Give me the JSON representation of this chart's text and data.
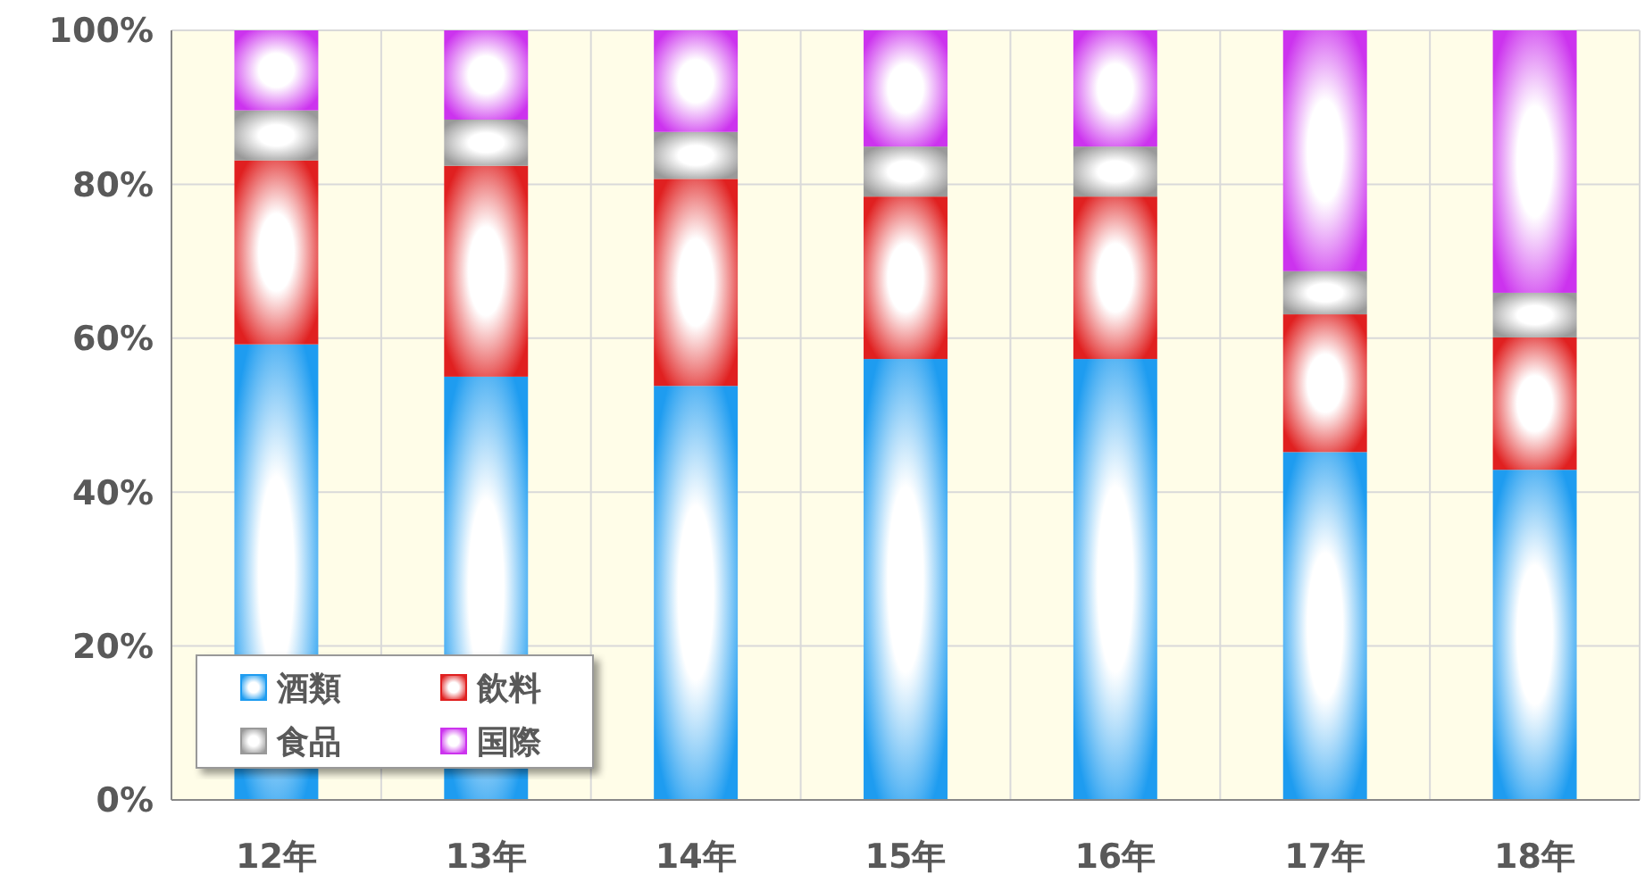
{
  "chart_data": {
    "type": "bar",
    "stacked": true,
    "categories": [
      "12年",
      "13年",
      "14年",
      "15年",
      "16年",
      "17年",
      "18年"
    ],
    "series": [
      {
        "name": "酒類",
        "color": "#1e9cf0",
        "values": [
          59.2,
          55.0,
          53.8,
          57.3,
          57.3,
          45.2,
          42.9
        ]
      },
      {
        "name": "飲料",
        "color": "#e02020",
        "values": [
          23.9,
          27.4,
          26.9,
          21.1,
          21.1,
          17.9,
          17.2
        ]
      },
      {
        "name": "食品",
        "color": "#999999",
        "values": [
          6.5,
          6.0,
          6.1,
          6.5,
          6.5,
          5.6,
          5.8
        ]
      },
      {
        "name": "国際",
        "color": "#cc33ee",
        "values": [
          10.4,
          11.6,
          13.2,
          15.1,
          15.1,
          31.3,
          34.1
        ]
      }
    ],
    "ylim": [
      0,
      100
    ],
    "yticks": [
      {
        "value": 0,
        "label": "0%"
      },
      {
        "value": 20,
        "label": "20%"
      },
      {
        "value": 40,
        "label": "40%"
      },
      {
        "value": 60,
        "label": "60%"
      },
      {
        "value": 80,
        "label": "80%"
      },
      {
        "value": 100,
        "label": "100%"
      }
    ],
    "grid": true,
    "legend": "bottom left"
  }
}
